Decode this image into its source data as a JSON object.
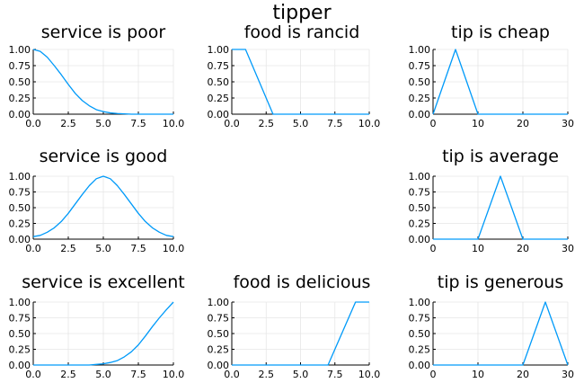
{
  "suptitle": "tipper",
  "colors": {
    "line": "#009af9",
    "grid": "#e6e6e6",
    "axis": "#000000"
  },
  "chart_data": [
    {
      "type": "line",
      "title": "service is poor",
      "xlim": [
        0,
        10
      ],
      "ylim": [
        0,
        1
      ],
      "xticks": [
        "0.0",
        "2.5",
        "5.0",
        "7.5",
        "10.0"
      ],
      "yticks": [
        "0.00",
        "0.25",
        "0.50",
        "0.75",
        "1.00"
      ],
      "series": [
        {
          "x": [
            0,
            0.5,
            1,
            1.5,
            2,
            2.5,
            3,
            3.5,
            4,
            4.5,
            5,
            5.5,
            6,
            7,
            8,
            10
          ],
          "y": [
            1,
            0.97,
            0.88,
            0.75,
            0.61,
            0.46,
            0.32,
            0.21,
            0.13,
            0.07,
            0.04,
            0.02,
            0.01,
            0,
            0,
            0
          ]
        }
      ]
    },
    {
      "type": "line",
      "title": "food is rancid",
      "xlim": [
        0,
        10
      ],
      "ylim": [
        0,
        1
      ],
      "xticks": [
        "0.0",
        "2.5",
        "5.0",
        "7.5",
        "10.0"
      ],
      "yticks": [
        "0.00",
        "0.25",
        "0.50",
        "0.75",
        "1.00"
      ],
      "series": [
        {
          "x": [
            0,
            1,
            3,
            10
          ],
          "y": [
            1,
            1,
            0,
            0
          ]
        }
      ]
    },
    {
      "type": "line",
      "title": "tip is cheap",
      "xlim": [
        0,
        30
      ],
      "ylim": [
        0,
        1
      ],
      "xticks": [
        "0",
        "10",
        "20",
        "30"
      ],
      "yticks": [
        "0.00",
        "0.25",
        "0.50",
        "0.75",
        "1.00"
      ],
      "series": [
        {
          "x": [
            0,
            5,
            10,
            30
          ],
          "y": [
            0,
            1,
            0,
            0
          ]
        }
      ]
    },
    {
      "type": "line",
      "title": "service is good",
      "xlim": [
        0,
        10
      ],
      "ylim": [
        0,
        1
      ],
      "xticks": [
        "0.0",
        "2.5",
        "5.0",
        "7.5",
        "10.0"
      ],
      "yticks": [
        "0.00",
        "0.25",
        "0.50",
        "0.75",
        "1.00"
      ],
      "series": [
        {
          "x": [
            0,
            0.5,
            1,
            1.5,
            2,
            2.5,
            3,
            3.5,
            4,
            4.5,
            5,
            5.5,
            6,
            6.5,
            7,
            7.5,
            8,
            8.5,
            9,
            9.5,
            10
          ],
          "y": [
            0.04,
            0.06,
            0.11,
            0.18,
            0.28,
            0.41,
            0.56,
            0.71,
            0.85,
            0.96,
            1,
            0.96,
            0.85,
            0.71,
            0.56,
            0.41,
            0.28,
            0.18,
            0.11,
            0.06,
            0.04
          ]
        }
      ]
    },
    {
      "type": "line",
      "title": "tip is average",
      "xlim": [
        0,
        30
      ],
      "ylim": [
        0,
        1
      ],
      "xticks": [
        "0",
        "10",
        "20",
        "30"
      ],
      "yticks": [
        "0.00",
        "0.25",
        "0.50",
        "0.75",
        "1.00"
      ],
      "series": [
        {
          "x": [
            0,
            10,
            15,
            20,
            30
          ],
          "y": [
            0,
            0,
            1,
            0,
            0
          ]
        }
      ]
    },
    {
      "type": "line",
      "title": "service is excellent",
      "xlim": [
        0,
        10
      ],
      "ylim": [
        0,
        1
      ],
      "xticks": [
        "0.0",
        "2.5",
        "5.0",
        "7.5",
        "10.0"
      ],
      "yticks": [
        "0.00",
        "0.25",
        "0.50",
        "0.75",
        "1.00"
      ],
      "series": [
        {
          "x": [
            0,
            3,
            4,
            4.5,
            5,
            5.5,
            6,
            6.5,
            7,
            7.5,
            8,
            8.5,
            9,
            9.5,
            10
          ],
          "y": [
            0,
            0,
            0,
            0.01,
            0.02,
            0.04,
            0.07,
            0.13,
            0.21,
            0.32,
            0.46,
            0.61,
            0.75,
            0.88,
            1
          ]
        }
      ]
    },
    {
      "type": "line",
      "title": "food is delicious",
      "xlim": [
        0,
        10
      ],
      "ylim": [
        0,
        1
      ],
      "xticks": [
        "0.0",
        "2.5",
        "5.0",
        "7.5",
        "10.0"
      ],
      "yticks": [
        "0.00",
        "0.25",
        "0.50",
        "0.75",
        "1.00"
      ],
      "series": [
        {
          "x": [
            0,
            7,
            9,
            10
          ],
          "y": [
            0,
            0,
            1,
            1
          ]
        }
      ]
    },
    {
      "type": "line",
      "title": "tip is generous",
      "xlim": [
        0,
        30
      ],
      "ylim": [
        0,
        1
      ],
      "xticks": [
        "0",
        "10",
        "20",
        "30"
      ],
      "yticks": [
        "0.00",
        "0.25",
        "0.50",
        "0.75",
        "1.00"
      ],
      "series": [
        {
          "x": [
            0,
            20,
            25,
            30
          ],
          "y": [
            0,
            0,
            1,
            0
          ]
        }
      ]
    }
  ]
}
